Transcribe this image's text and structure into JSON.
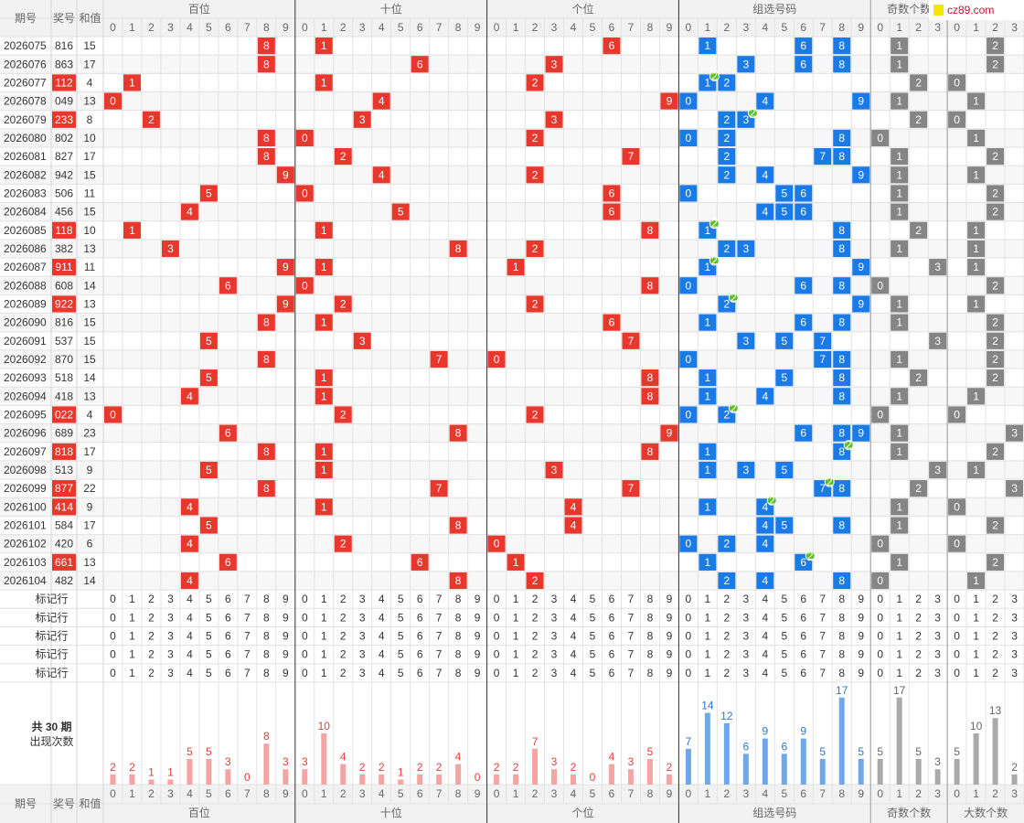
{
  "header": {
    "issue": "期号",
    "number": "奖号",
    "sum": "和值",
    "sections": [
      "百位",
      "十位",
      "个位",
      "组选号码",
      "奇数个数",
      "大数个数"
    ],
    "digits": [
      0,
      1,
      2,
      3,
      4,
      5,
      6,
      7,
      8,
      9
    ],
    "counts": [
      0,
      1,
      2,
      3
    ]
  },
  "logo": "cz89.com",
  "pair_badge": 2,
  "rows": [
    {
      "issue": "2026075",
      "number": "816",
      "sum": 15,
      "digits": [
        8,
        1,
        6
      ],
      "group": [
        1,
        6,
        8
      ],
      "odd": 1,
      "big": 2
    },
    {
      "issue": "2026076",
      "number": "863",
      "sum": 17,
      "digits": [
        8,
        6,
        3
      ],
      "group": [
        3,
        6,
        8
      ],
      "odd": 1,
      "big": 2
    },
    {
      "issue": "2026077",
      "number": "112",
      "sum": 4,
      "digits": [
        1,
        1,
        2
      ],
      "group": [
        1,
        2
      ],
      "pair": 1,
      "odd": 2,
      "big": 0
    },
    {
      "issue": "2026078",
      "number": "049",
      "sum": 13,
      "digits": [
        0,
        4,
        9
      ],
      "group": [
        0,
        4,
        9
      ],
      "odd": 1,
      "big": 1
    },
    {
      "issue": "2026079",
      "number": "233",
      "sum": 8,
      "digits": [
        2,
        3,
        3
      ],
      "group": [
        2,
        3
      ],
      "pair": 3,
      "odd": 2,
      "big": 0
    },
    {
      "issue": "2026080",
      "number": "802",
      "sum": 10,
      "digits": [
        8,
        0,
        2
      ],
      "group": [
        0,
        2,
        8
      ],
      "odd": 0,
      "big": 1
    },
    {
      "issue": "2026081",
      "number": "827",
      "sum": 17,
      "digits": [
        8,
        2,
        7
      ],
      "group": [
        2,
        7,
        8
      ],
      "odd": 1,
      "big": 2
    },
    {
      "issue": "2026082",
      "number": "942",
      "sum": 15,
      "digits": [
        9,
        4,
        2
      ],
      "group": [
        2,
        4,
        9
      ],
      "odd": 1,
      "big": 1
    },
    {
      "issue": "2026083",
      "number": "506",
      "sum": 11,
      "digits": [
        5,
        0,
        6
      ],
      "group": [
        0,
        5,
        6
      ],
      "odd": 1,
      "big": 2
    },
    {
      "issue": "2026084",
      "number": "456",
      "sum": 15,
      "digits": [
        4,
        5,
        6
      ],
      "group": [
        4,
        5,
        6
      ],
      "odd": 1,
      "big": 2
    },
    {
      "issue": "2026085",
      "number": "118",
      "sum": 10,
      "digits": [
        1,
        1,
        8
      ],
      "group": [
        1,
        8
      ],
      "pair": 1,
      "odd": 2,
      "big": 1
    },
    {
      "issue": "2026086",
      "number": "382",
      "sum": 13,
      "digits": [
        3,
        8,
        2
      ],
      "group": [
        2,
        3,
        8
      ],
      "odd": 1,
      "big": 1
    },
    {
      "issue": "2026087",
      "number": "911",
      "sum": 11,
      "digits": [
        9,
        1,
        1
      ],
      "group": [
        1,
        9
      ],
      "pair": 1,
      "odd": 3,
      "big": 1
    },
    {
      "issue": "2026088",
      "number": "608",
      "sum": 14,
      "digits": [
        6,
        0,
        8
      ],
      "group": [
        0,
        6,
        8
      ],
      "odd": 0,
      "big": 2
    },
    {
      "issue": "2026089",
      "number": "922",
      "sum": 13,
      "digits": [
        9,
        2,
        2
      ],
      "group": [
        2,
        9
      ],
      "pair": 2,
      "odd": 1,
      "big": 1
    },
    {
      "issue": "2026090",
      "number": "816",
      "sum": 15,
      "digits": [
        8,
        1,
        6
      ],
      "group": [
        1,
        6,
        8
      ],
      "odd": 1,
      "big": 2
    },
    {
      "issue": "2026091",
      "number": "537",
      "sum": 15,
      "digits": [
        5,
        3,
        7
      ],
      "group": [
        3,
        5,
        7
      ],
      "odd": 3,
      "big": 2
    },
    {
      "issue": "2026092",
      "number": "870",
      "sum": 15,
      "digits": [
        8,
        7,
        0
      ],
      "group": [
        0,
        7,
        8
      ],
      "odd": 1,
      "big": 2
    },
    {
      "issue": "2026093",
      "number": "518",
      "sum": 14,
      "digits": [
        5,
        1,
        8
      ],
      "group": [
        1,
        5,
        8
      ],
      "odd": 2,
      "big": 2
    },
    {
      "issue": "2026094",
      "number": "418",
      "sum": 13,
      "digits": [
        4,
        1,
        8
      ],
      "group": [
        1,
        4,
        8
      ],
      "odd": 1,
      "big": 1
    },
    {
      "issue": "2026095",
      "number": "022",
      "sum": 4,
      "digits": [
        0,
        2,
        2
      ],
      "group": [
        0,
        2
      ],
      "pair": 2,
      "odd": 0,
      "big": 0
    },
    {
      "issue": "2026096",
      "number": "689",
      "sum": 23,
      "digits": [
        6,
        8,
        9
      ],
      "group": [
        6,
        8,
        9
      ],
      "odd": 1,
      "big": 3
    },
    {
      "issue": "2026097",
      "number": "818",
      "sum": 17,
      "digits": [
        8,
        1,
        8
      ],
      "group": [
        1,
        8
      ],
      "pair": 8,
      "odd": 1,
      "big": 2
    },
    {
      "issue": "2026098",
      "number": "513",
      "sum": 9,
      "digits": [
        5,
        1,
        3
      ],
      "group": [
        1,
        3,
        5
      ],
      "odd": 3,
      "big": 1
    },
    {
      "issue": "2026099",
      "number": "877",
      "sum": 22,
      "digits": [
        8,
        7,
        7
      ],
      "group": [
        7,
        8
      ],
      "pair": 7,
      "odd": 2,
      "big": 3
    },
    {
      "issue": "2026100",
      "number": "414",
      "sum": 9,
      "digits": [
        4,
        1,
        4
      ],
      "group": [
        1,
        4
      ],
      "pair": 4,
      "odd": 1,
      "big": 0
    },
    {
      "issue": "2026101",
      "number": "584",
      "sum": 17,
      "digits": [
        5,
        8,
        4
      ],
      "group": [
        4,
        5,
        8
      ],
      "odd": 1,
      "big": 2
    },
    {
      "issue": "2026102",
      "number": "420",
      "sum": 6,
      "digits": [
        4,
        2,
        0
      ],
      "group": [
        0,
        2,
        4
      ],
      "odd": 0,
      "big": 0
    },
    {
      "issue": "2026103",
      "number": "661",
      "sum": 13,
      "digits": [
        6,
        6,
        1
      ],
      "group": [
        1,
        6
      ],
      "pair": 6,
      "odd": 1,
      "big": 2
    },
    {
      "issue": "2026104",
      "number": "482",
      "sum": 14,
      "digits": [
        4,
        8,
        2
      ],
      "group": [
        2,
        4,
        8
      ],
      "odd": 0,
      "big": 1
    }
  ],
  "mark_rows": [
    "标记行",
    "标记行",
    "标记行",
    "标记行",
    "标记行"
  ],
  "stats": {
    "label": [
      "共 30 期",
      "出现次数"
    ],
    "counts": [
      [
        2,
        2,
        1,
        1,
        5,
        5,
        3,
        0,
        8,
        3
      ],
      [
        3,
        10,
        4,
        2,
        2,
        1,
        2,
        2,
        4,
        0
      ],
      [
        2,
        2,
        7,
        3,
        2,
        0,
        4,
        3,
        5,
        2
      ],
      [
        7,
        14,
        12,
        6,
        9,
        6,
        9,
        5,
        17,
        5
      ],
      [
        5,
        17,
        5,
        3
      ],
      [
        5,
        10,
        13,
        2
      ]
    ]
  }
}
